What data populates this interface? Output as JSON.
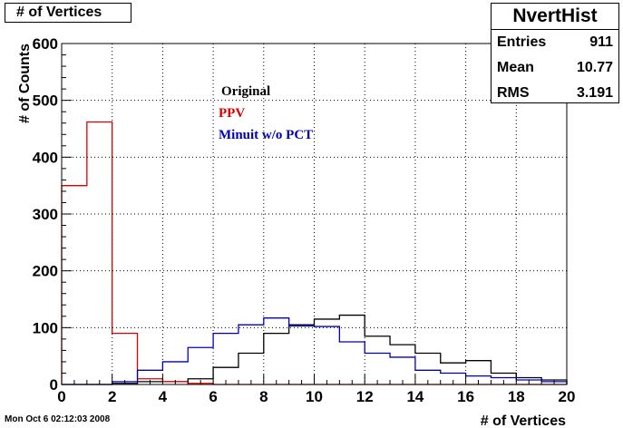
{
  "title": "# of Vertices",
  "stats": {
    "name": "NvertHist",
    "rows": [
      {
        "label": "Entries",
        "value": "911"
      },
      {
        "label": "Mean",
        "value": "10.77"
      },
      {
        "label": "RMS",
        "value": "3.191"
      }
    ]
  },
  "timestamp": "Mon Oct  6 02:12:03 2008",
  "colors": {
    "original": "#000000",
    "ppv": "#dd0000",
    "minuit": "#0000bb"
  },
  "chart_data": {
    "type": "histogram",
    "xlabel": "# of Vertices",
    "ylabel": "# of Counts",
    "xlim": [
      0,
      20
    ],
    "ylim": [
      0,
      600
    ],
    "bin_width": 1,
    "xticks": [
      0,
      2,
      4,
      6,
      8,
      10,
      12,
      14,
      16,
      18,
      20
    ],
    "yticks": [
      0,
      100,
      200,
      300,
      400,
      500,
      600
    ],
    "grid": true,
    "legend_position": "top-center",
    "bin_edges": [
      0,
      1,
      2,
      3,
      4,
      5,
      6,
      7,
      8,
      9,
      10,
      11,
      12,
      13,
      14,
      15,
      16,
      17,
      18,
      19,
      20
    ],
    "series": [
      {
        "name": "Original",
        "color": "#000000",
        "values": [
          0,
          0,
          2,
          5,
          5,
          10,
          30,
          55,
          90,
          105,
          115,
          122,
          85,
          70,
          55,
          38,
          42,
          20,
          12,
          8
        ]
      },
      {
        "name": "PPV",
        "color": "#dd0000",
        "values": [
          350,
          462,
          90,
          10,
          5,
          2,
          0,
          0,
          0,
          0,
          0,
          0,
          0,
          0,
          0,
          0,
          0,
          0,
          0,
          0
        ]
      },
      {
        "name": "Minuit w/o PCT",
        "color": "#0000bb",
        "values": [
          0,
          0,
          5,
          25,
          40,
          65,
          90,
          105,
          117,
          103,
          102,
          75,
          55,
          48,
          25,
          20,
          15,
          12,
          8,
          5
        ]
      }
    ]
  }
}
